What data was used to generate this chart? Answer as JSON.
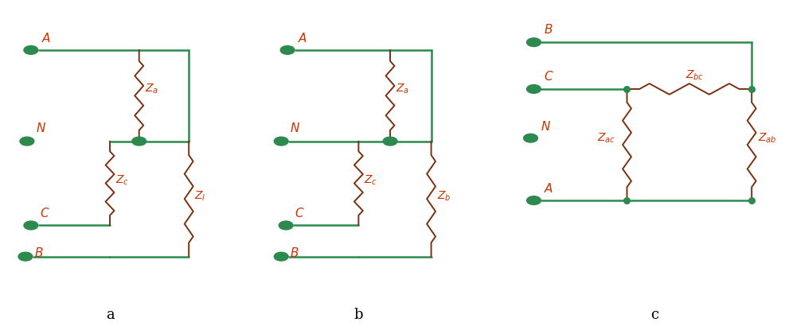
{
  "fig_width": 9.87,
  "fig_height": 4.15,
  "bg_color": "#ffffff",
  "wire_color": "#2d8a4e",
  "resistor_color": "#7b3010",
  "label_color": "#cc3300",
  "dot_color": "#2d8a4e",
  "label_fontsize": 11,
  "sublabel_fontsize": 13,
  "resistor_label_fontsize": 10,
  "sub_a": "a",
  "sub_b": "b",
  "sub_c": "c"
}
